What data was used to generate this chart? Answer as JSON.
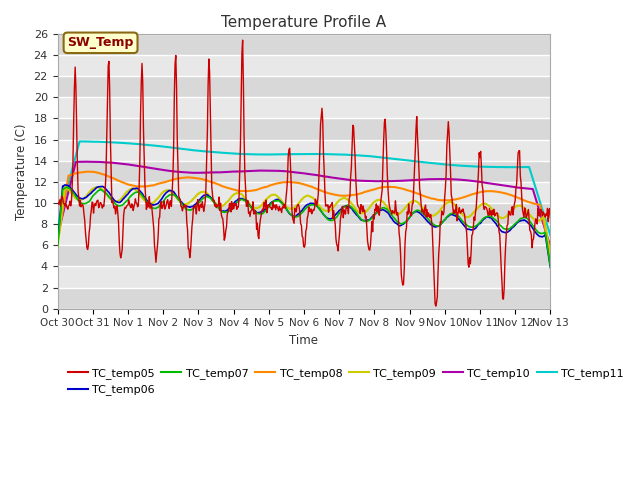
{
  "title": "Temperature Profile A",
  "xlabel": "Time",
  "ylabel": "Temperature (C)",
  "ylim": [
    0,
    26
  ],
  "yticks": [
    0,
    2,
    4,
    6,
    8,
    10,
    12,
    14,
    16,
    18,
    20,
    22,
    24,
    26
  ],
  "fig_bg": "#ffffff",
  "plot_bg": "#e8e8e8",
  "grid_color": "#ffffff",
  "sw_temp_label": "SW_Temp",
  "x_tick_labels": [
    "Oct 30",
    "Oct 31",
    "Nov 1",
    "Nov 2",
    "Nov 3",
    "Nov 4",
    "Nov 5",
    "Nov 6",
    "Nov 7",
    "Nov 8",
    "Nov 9",
    "Nov 10",
    "Nov 11",
    "Nov 12",
    "Nov 13"
  ],
  "series": {
    "TC_temp05": {
      "color": "#cc0000",
      "lw": 1.0
    },
    "TC_temp06": {
      "color": "#0000cc",
      "lw": 1.2
    },
    "TC_temp07": {
      "color": "#00bb00",
      "lw": 1.2
    },
    "TC_temp08": {
      "color": "#ff8800",
      "lw": 1.5
    },
    "TC_temp09": {
      "color": "#cccc00",
      "lw": 1.5
    },
    "TC_temp10": {
      "color": "#aa00aa",
      "lw": 1.5
    },
    "TC_temp11": {
      "color": "#00cccc",
      "lw": 1.5
    }
  }
}
